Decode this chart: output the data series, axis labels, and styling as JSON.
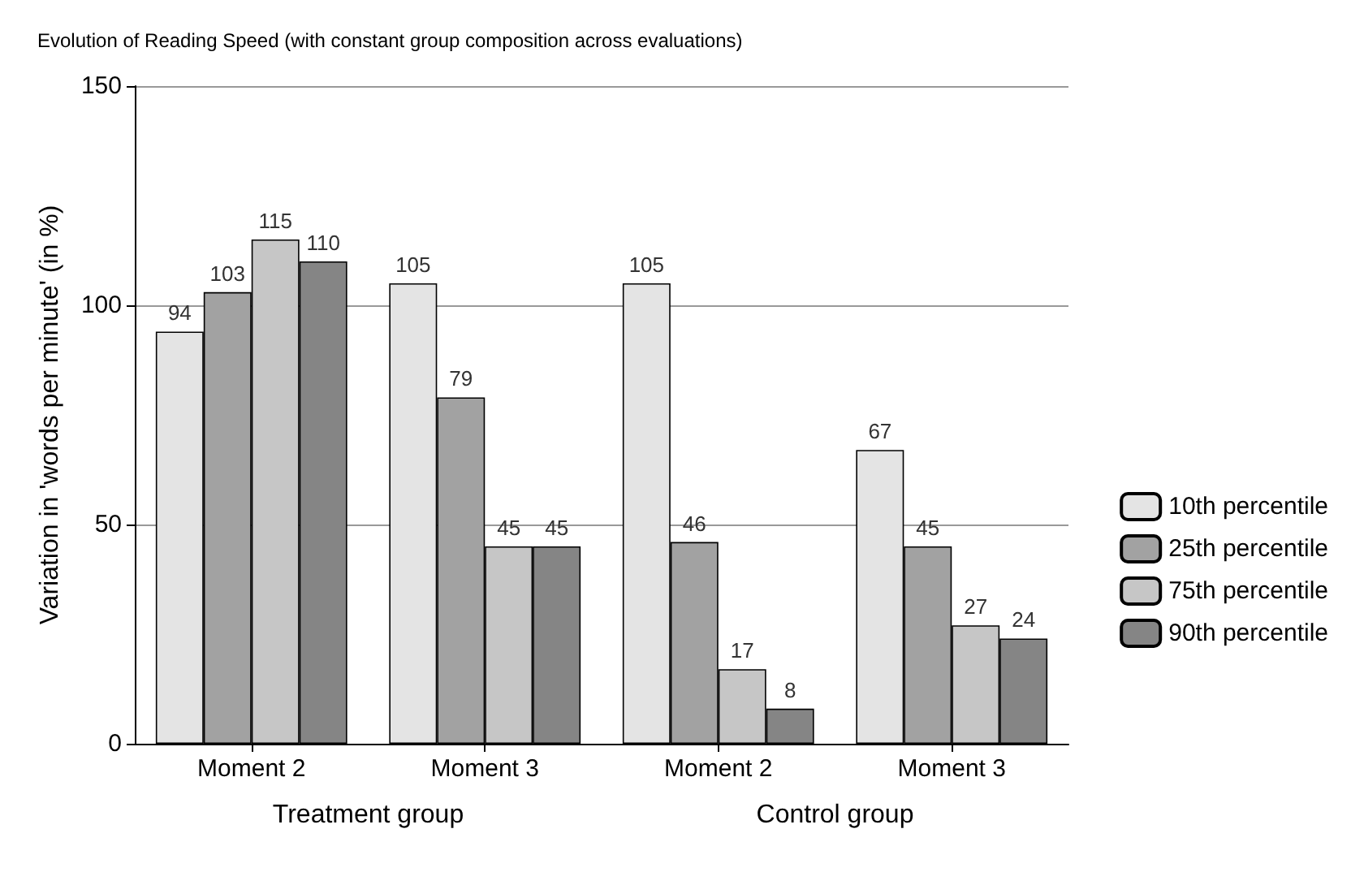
{
  "chart_data": {
    "type": "bar",
    "title": "Evolution of Reading Speed (with constant group composition across evaluations)",
    "ylabel": "Variation in 'words per minute' (in %)",
    "categories": [
      "Moment 2",
      "Moment 3",
      "Moment 2",
      "Moment 3"
    ],
    "series": [
      {
        "name": "10th percentile",
        "color": "#e4e4e4",
        "values": [
          94,
          105,
          105,
          67
        ]
      },
      {
        "name": "25th percentile",
        "color": "#a2a2a2",
        "values": [
          103,
          79,
          46,
          45
        ]
      },
      {
        "name": "75th percentile",
        "color": "#c6c6c6",
        "values": [
          115,
          45,
          17,
          27
        ]
      },
      {
        "name": "90th percentile",
        "color": "#858585",
        "values": [
          110,
          45,
          8,
          24
        ]
      }
    ],
    "annotations": [
      "Treatment group",
      "Control group"
    ],
    "ylim": [
      0,
      150
    ],
    "yticks": [
      0,
      50,
      100,
      150
    ],
    "grid": "y",
    "legend": "right",
    "data_labels": true
  }
}
